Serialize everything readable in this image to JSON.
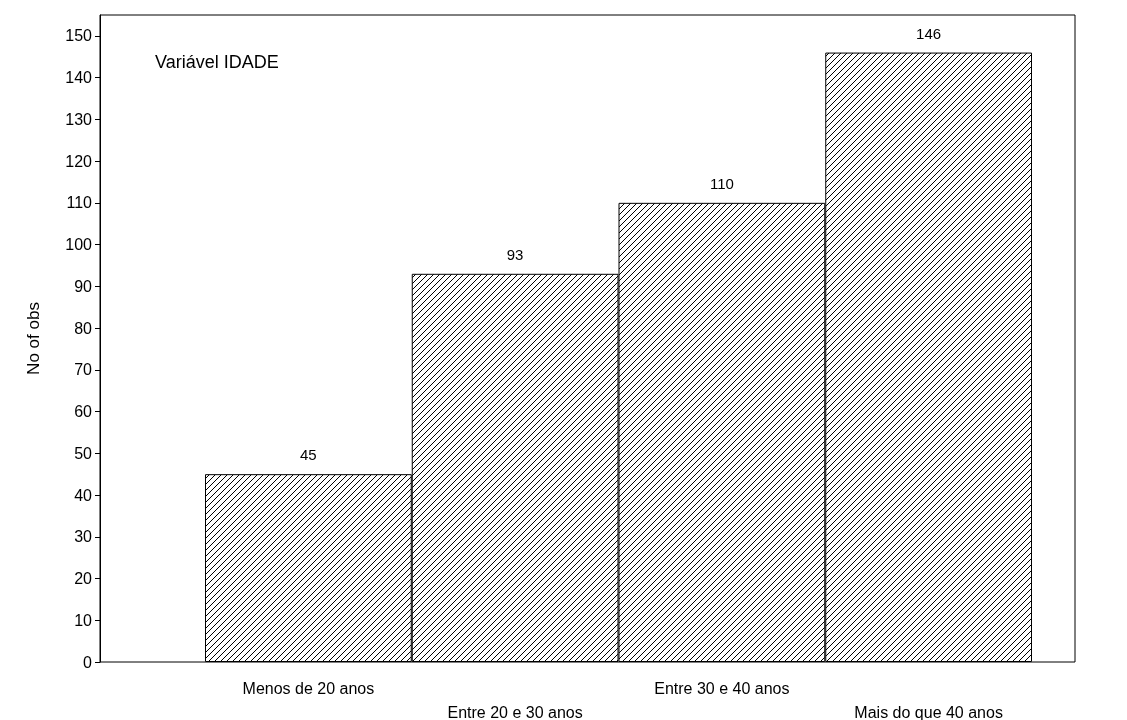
{
  "chart_data": {
    "type": "bar",
    "title": "Variável IDADE",
    "ylabel": "No of obs",
    "categories": [
      "Menos de 20 anos",
      "Entre 20 e 30 anos",
      "Entre 30 e 40 anos",
      "Mais do que 40 anos"
    ],
    "values": [
      45,
      93,
      110,
      146
    ],
    "color": "#000000",
    "data_labels": true,
    "grid": false,
    "ylim": [
      0,
      155
    ],
    "yticks": [
      0,
      10,
      20,
      30,
      40,
      50,
      60,
      70,
      80,
      90,
      100,
      110,
      120,
      130,
      140,
      150
    ]
  }
}
